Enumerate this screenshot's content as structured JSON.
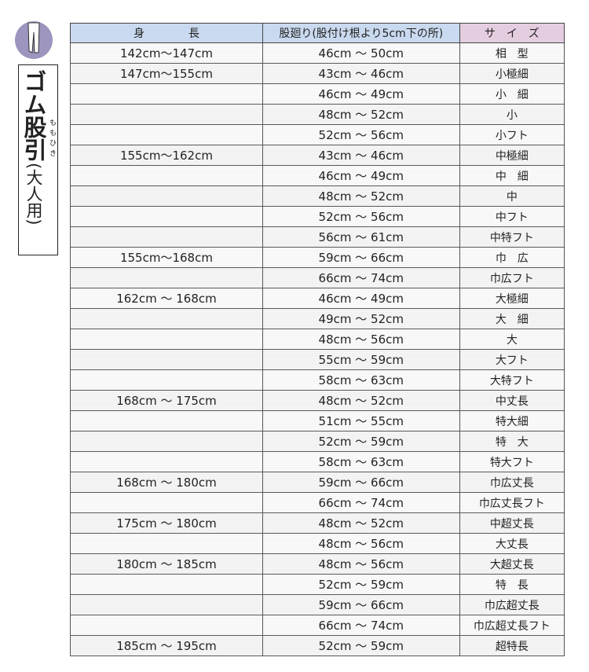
{
  "title": {
    "main": "ゴム股引",
    "ruby": "ももひき",
    "sub": "(大人用)"
  },
  "table": {
    "headers": [
      "身　　　　長",
      "股廻り(股付け根より5cm下の所)",
      "サ　イ　ズ"
    ],
    "rows": [
      [
        "142cm～147cm",
        "46cm ～ 50cm",
        "相　型"
      ],
      [
        "147cm～155cm",
        "43cm ～ 46cm",
        "小極細"
      ],
      [
        "",
        "46cm ～ 49cm",
        "小　細"
      ],
      [
        "",
        "48cm ～ 52cm",
        "小"
      ],
      [
        "",
        "52cm ～ 56cm",
        "小フト"
      ],
      [
        "155cm～162cm",
        "43cm ～ 46cm",
        "中極細"
      ],
      [
        "",
        "46cm ～ 49cm",
        "中　細"
      ],
      [
        "",
        "48cm ～ 52cm",
        "中"
      ],
      [
        "",
        "52cm ～ 56cm",
        "中フト"
      ],
      [
        "",
        "56cm ～ 61cm",
        "中特フト"
      ],
      [
        "155cm～168cm",
        "59cm ～ 66cm",
        "巾　広"
      ],
      [
        "",
        "66cm ～ 74cm",
        "巾広フト"
      ],
      [
        "162cm ～ 168cm",
        "46cm ～ 49cm",
        "大極細"
      ],
      [
        "",
        "49cm ～ 52cm",
        "大　細"
      ],
      [
        "",
        "48cm ～ 56cm",
        "大"
      ],
      [
        "",
        "55cm ～ 59cm",
        "大フト"
      ],
      [
        "",
        "58cm ～ 63cm",
        "大特フト"
      ],
      [
        "168cm ～ 175cm",
        "48cm ～ 52cm",
        "中丈長"
      ],
      [
        "",
        "51cm ～ 55cm",
        "特大細"
      ],
      [
        "",
        "52cm ～ 59cm",
        "特　大"
      ],
      [
        "",
        "58cm ～ 63cm",
        "特大フト"
      ],
      [
        "168cm ～ 180cm",
        "59cm ～ 66cm",
        "巾広丈長"
      ],
      [
        "",
        "66cm ～ 74cm",
        "巾広丈長フト"
      ],
      [
        "175cm ～ 180cm",
        "48cm ～ 52cm",
        "中超丈長"
      ],
      [
        "",
        "48cm ～ 56cm",
        "大丈長"
      ],
      [
        "180cm ～ 185cm",
        "48cm ～ 56cm",
        "大超丈長"
      ],
      [
        "",
        "52cm ～ 59cm",
        "特　長"
      ],
      [
        "",
        "59cm ～ 66cm",
        "巾広超丈長"
      ],
      [
        "",
        "66cm ～ 74cm",
        "巾広超丈長フト"
      ],
      [
        "185cm ～ 195cm",
        "52cm ～ 59cm",
        "超特長"
      ]
    ]
  },
  "colors": {
    "header_blue": "#c9d9ef",
    "header_pink": "#e5cde0",
    "logo_purple": "#9d95bd"
  }
}
